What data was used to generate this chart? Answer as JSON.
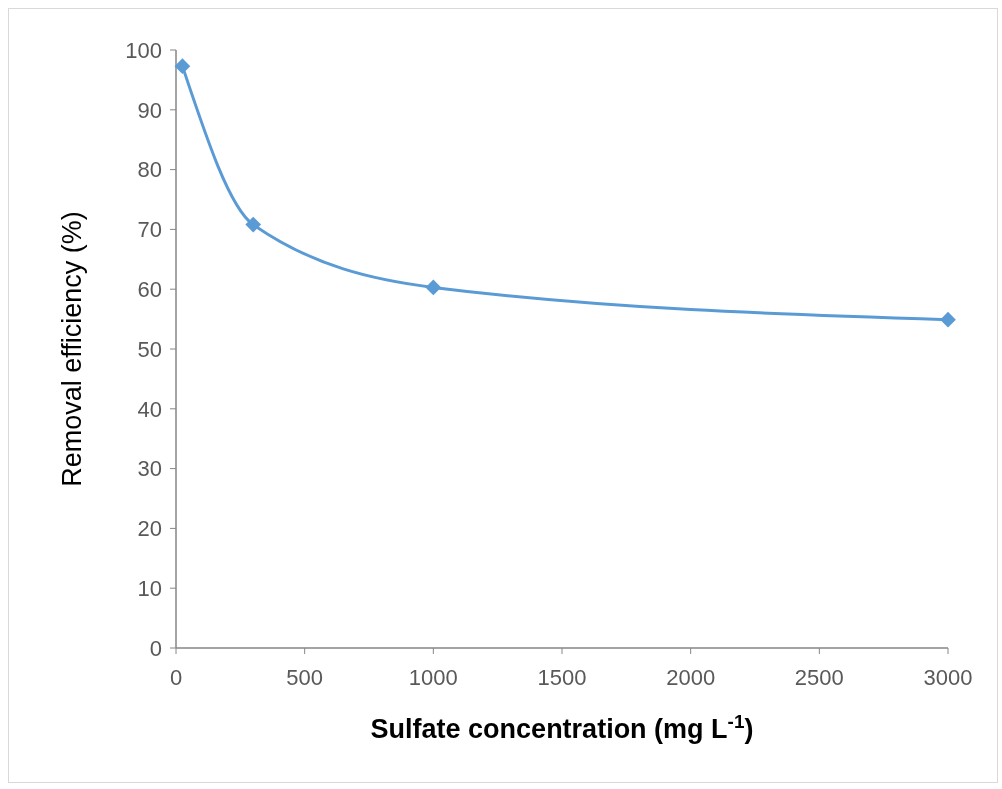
{
  "chart_data": {
    "type": "line",
    "xlabel": "Sulfate concentration (mg L$^{-1}$)",
    "ylabel": "Removal efficiency (%)",
    "x": [
      25,
      300,
      1000,
      3000
    ],
    "series": [
      {
        "color": "#5b9bd5",
        "values": [
          97.3,
          70.8,
          60.3,
          54.9
        ]
      }
    ],
    "xlim": [
      0,
      3000
    ],
    "xticks": [
      0,
      500,
      1000,
      1500,
      2000,
      2500,
      3000
    ],
    "ylim": [
      0,
      100
    ],
    "yticks": [
      0,
      10,
      20,
      30,
      40,
      50,
      60,
      70,
      80,
      90,
      100
    ],
    "grid": false,
    "marker": "diamond",
    "line_style": "solid"
  }
}
